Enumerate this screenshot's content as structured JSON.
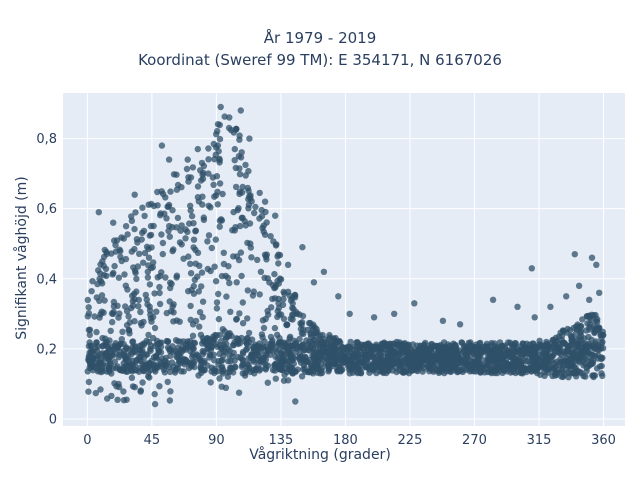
{
  "chart_data": {
    "type": "scatter",
    "title": "År 1979 - 2019",
    "subtitle": "Koordinat (Sweref 99 TM): E 354171, N 6167026",
    "xlabel": "Vågriktning (grader)",
    "ylabel": "Signifikant våghöjd (m)",
    "xlim": [
      -17,
      375
    ],
    "ylim": [
      -0.02,
      0.93
    ],
    "x_ticks": [
      0,
      45,
      90,
      135,
      180,
      225,
      270,
      315,
      360
    ],
    "x_tick_labels": [
      "0",
      "45",
      "90",
      "135",
      "180",
      "225",
      "270",
      "315",
      "360"
    ],
    "y_ticks": [
      0,
      0.2,
      0.4,
      0.6,
      0.8
    ],
    "y_tick_labels": [
      "0",
      "0,2",
      "0,4",
      "0,6",
      "0,8"
    ],
    "grid": true,
    "legend": "none",
    "colors": {
      "marker": "#2f5068",
      "plot_bg": "#e5ecf6",
      "grid": "#ffffff",
      "text": "#2a3f5f"
    },
    "series": [
      {
        "values_envelope_note_free": true,
        "x": [
          0,
          5,
          10,
          15,
          20,
          25,
          30,
          35,
          40,
          45,
          50,
          55,
          60,
          65,
          70,
          75,
          80,
          85,
          90,
          95,
          100,
          105,
          110,
          115,
          120,
          125,
          130,
          135,
          140,
          145,
          150,
          155,
          160,
          165,
          170,
          175,
          180,
          190,
          200,
          210,
          220,
          230,
          240,
          250,
          260,
          270,
          280,
          290,
          300,
          310,
          320,
          330,
          340,
          345,
          350,
          355,
          360
        ],
        "y_min": [
          0.06,
          0.06,
          0.06,
          0.05,
          0.04,
          0.04,
          0.04,
          0.04,
          0.04,
          0.04,
          0.04,
          0.04,
          0.04,
          0.04,
          0.04,
          0.04,
          0.05,
          0.05,
          0.05,
          0.05,
          0.06,
          0.06,
          0.07,
          0.07,
          0.08,
          0.09,
          0.1,
          0.1,
          0.11,
          0.12,
          0.12,
          0.12,
          0.13,
          0.13,
          0.13,
          0.13,
          0.13,
          0.13,
          0.13,
          0.13,
          0.13,
          0.13,
          0.13,
          0.13,
          0.13,
          0.13,
          0.13,
          0.13,
          0.13,
          0.13,
          0.12,
          0.12,
          0.11,
          0.11,
          0.11,
          0.11,
          0.12
        ],
        "y_max": [
          0.38,
          0.43,
          0.47,
          0.5,
          0.53,
          0.55,
          0.58,
          0.6,
          0.62,
          0.63,
          0.66,
          0.68,
          0.7,
          0.72,
          0.73,
          0.73,
          0.76,
          0.79,
          0.83,
          0.88,
          0.85,
          0.83,
          0.78,
          0.72,
          0.66,
          0.6,
          0.52,
          0.46,
          0.4,
          0.36,
          0.3,
          0.28,
          0.26,
          0.25,
          0.24,
          0.23,
          0.22,
          0.21,
          0.21,
          0.21,
          0.21,
          0.21,
          0.21,
          0.21,
          0.21,
          0.21,
          0.21,
          0.21,
          0.21,
          0.22,
          0.23,
          0.25,
          0.27,
          0.29,
          0.3,
          0.3,
          0.26
        ],
        "outliers_x": [
          8,
          18,
          27,
          33,
          52,
          57,
          70,
          77,
          93,
          99,
          107,
          113,
          124,
          131,
          140,
          150,
          158,
          165,
          175,
          183,
          200,
          214,
          228,
          248,
          260,
          283,
          300,
          310,
          312,
          323,
          334,
          340,
          343,
          350,
          352,
          355,
          357,
          145
        ],
        "outliers_y": [
          0.59,
          0.56,
          0.55,
          0.64,
          0.78,
          0.74,
          0.74,
          0.77,
          0.89,
          0.86,
          0.88,
          0.8,
          0.62,
          0.58,
          0.44,
          0.49,
          0.39,
          0.42,
          0.35,
          0.3,
          0.29,
          0.3,
          0.33,
          0.28,
          0.27,
          0.34,
          0.32,
          0.43,
          0.29,
          0.32,
          0.35,
          0.47,
          0.38,
          0.34,
          0.46,
          0.44,
          0.36,
          0.05
        ]
      }
    ]
  }
}
